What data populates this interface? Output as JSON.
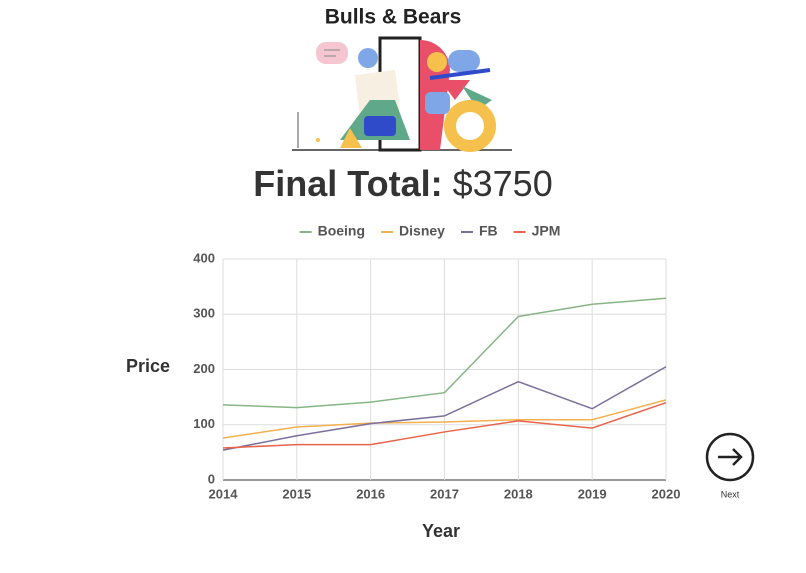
{
  "header": {
    "title": "Bulls & Bears"
  },
  "total": {
    "label": "Final Total:",
    "amount": "$3750"
  },
  "chart_data": {
    "type": "line",
    "x": [
      2014,
      2015,
      2016,
      2017,
      2018,
      2019,
      2020
    ],
    "series": [
      {
        "name": "Boeing",
        "color": "#86b686",
        "values": [
          136,
          131,
          141,
          158,
          296,
          318,
          329
        ]
      },
      {
        "name": "Disney",
        "color": "#f4b04f",
        "values": [
          76,
          96,
          103,
          105,
          109,
          109,
          145
        ]
      },
      {
        "name": "FB",
        "color": "#7b6f9c",
        "values": [
          54,
          80,
          102,
          116,
          178,
          129,
          205
        ]
      },
      {
        "name": "JPM",
        "color": "#e8654c",
        "values": [
          58,
          64,
          64,
          87,
          107,
          94,
          140
        ]
      }
    ],
    "xlabel": "Year",
    "ylabel": "Price",
    "xlim": [
      2014,
      2020
    ],
    "xticks": [
      2014,
      2015,
      2016,
      2017,
      2018,
      2019,
      2020
    ],
    "ylim": [
      0,
      400
    ],
    "yticks": [
      0,
      100,
      200,
      300,
      400
    ],
    "grid": true,
    "legend": "top"
  },
  "next": {
    "label": "Next"
  }
}
